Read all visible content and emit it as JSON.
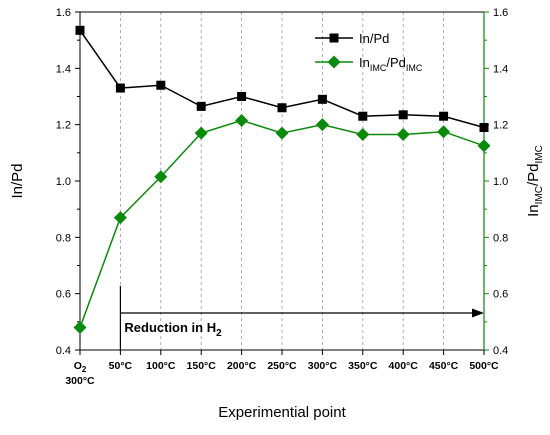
{
  "chart_data": {
    "type": "line",
    "categories": [
      "O2|300°C",
      "50°C",
      "100°C",
      "150°C",
      "200°C",
      "250°C",
      "300°C",
      "350°C",
      "400°C",
      "450°C",
      "500°C"
    ],
    "xlabel": "Experimential point",
    "ylabel_left": "In/Pd",
    "ylabel_right": "In_IMC/Pd_IMC",
    "ylim_left": [
      0.4,
      1.6
    ],
    "ylim_right": [
      0.4,
      1.6
    ],
    "yticks": [
      0.4,
      0.6,
      0.8,
      1.0,
      1.2,
      1.4,
      1.6
    ],
    "ytick_labels": [
      "0.4",
      "0.6",
      "0.8",
      "1.0",
      "1.2",
      "1.4",
      "1.6"
    ],
    "grid": "vertical dashed",
    "legend_position": "top-right",
    "series": [
      {
        "name": "In/Pd",
        "legend_parts": [
          {
            "t": "In/Pd",
            "sub": false
          }
        ],
        "axis": "left",
        "color": "#000000",
        "marker": "square",
        "values": [
          1.535,
          1.33,
          1.34,
          1.265,
          1.3,
          1.26,
          1.29,
          1.23,
          1.235,
          1.23,
          1.19
        ]
      },
      {
        "name": "InIMC/PdIMC",
        "legend_parts": [
          {
            "t": "In",
            "sub": false
          },
          {
            "t": "IMC",
            "sub": true
          },
          {
            "t": "/Pd",
            "sub": false
          },
          {
            "t": "IMC",
            "sub": true
          }
        ],
        "axis": "right",
        "color": "#0a8a0a",
        "marker": "diamond",
        "values": [
          0.48,
          0.87,
          1.015,
          1.17,
          1.215,
          1.17,
          1.2,
          1.165,
          1.165,
          1.175,
          1.125
        ]
      }
    ],
    "annotation": {
      "text_main": "Reduction in H",
      "text_sub": "2",
      "arrow_from_index": 1,
      "arrow_to_index": 10
    },
    "colors": {
      "left_axis": "#000000",
      "right_axis": "#0a8a0a"
    }
  }
}
